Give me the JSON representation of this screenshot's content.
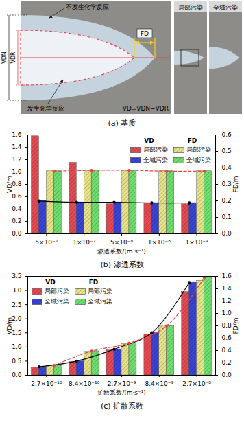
{
  "diagram": {
    "caption": "(a) 基质",
    "outer_label": "不发生化学反应",
    "inner_label": "发生化学反应",
    "fd_label": "FD",
    "vdn_label": "VDN",
    "vdr_label": "VDR",
    "equation": "VD=VDN−VDR",
    "panels": [
      "局部污染",
      "全域污染"
    ]
  },
  "chart_data": [
    {
      "type": "bar",
      "caption": "(b) 渗透系数",
      "xlabel": "渗透系数/(m·s⁻¹)",
      "ylabel": "VD/m",
      "y2label": "FD/m",
      "categories": [
        "5×10⁻⁷",
        "1×10⁻⁷",
        "5×10⁻⁸",
        "1×10⁻⁸",
        "1×10⁻⁹"
      ],
      "ylim": [
        0,
        1.6
      ],
      "yticks": [
        {
          "value": 0,
          "label": "0.0"
        },
        0.2,
        0.4,
        0.6,
        0.8,
        {
          "value": 1,
          "label": "1.0"
        },
        1.2,
        1.4,
        1.6
      ],
      "y2lim": [
        0,
        0.6
      ],
      "y2ticks": [
        {
          "value": 0,
          "label": "0.0"
        },
        0.1,
        0.2,
        0.3,
        0.4,
        0.5,
        0.6
      ],
      "legend": "upper right",
      "series": [
        {
          "name": "局部污染",
          "group": "VD",
          "type": "bar",
          "axis": "y",
          "color": "#e64a52",
          "values": [
            1.58,
            1.15,
            0.48,
            0.49,
            0.48
          ]
        },
        {
          "name": "全域污染",
          "group": "VD",
          "type": "bar",
          "axis": "y",
          "color": "#3a44d6",
          "values": [
            0.53,
            0.51,
            0.51,
            0.5,
            0.5
          ]
        },
        {
          "name": "局部污染",
          "group": "FD",
          "type": "bar",
          "axis": "y2",
          "color": "#e8e48c",
          "values": [
            0.38,
            0.385,
            0.385,
            0.38,
            0.38
          ]
        },
        {
          "name": "全域污染",
          "group": "FD",
          "type": "bar",
          "axis": "y2",
          "color": "#6fe06f",
          "values": [
            0.38,
            0.385,
            0.385,
            0.38,
            0.38
          ]
        },
        {
          "type": "line",
          "axis": "y",
          "color": "#000000",
          "line_style": "solid",
          "marker": "circle",
          "values": [
            0.53,
            0.51,
            0.51,
            0.5,
            0.5
          ]
        },
        {
          "type": "line",
          "axis": "y2",
          "color": "#e8434a",
          "line_style": "dashed",
          "marker": "circle",
          "values": [
            0.38,
            0.385,
            0.385,
            0.38,
            0.38
          ]
        }
      ]
    },
    {
      "type": "bar",
      "caption": "(c) 扩散系数",
      "xlabel": "扩散系数/(m·s⁻¹)",
      "ylabel": "VD/m",
      "y2label": "FD/m",
      "categories": [
        "2.7×10⁻¹⁰",
        "8.4×10⁻¹⁰",
        "2.7×10⁻⁹",
        "8.4×10⁻⁹",
        "2.7×10⁻⁸"
      ],
      "ylim": [
        0,
        3.5
      ],
      "yticks": [
        {
          "value": 0,
          "label": "0.0"
        },
        0.5,
        {
          "value": 1,
          "label": "1.0"
        },
        1.5,
        {
          "value": 2,
          "label": "2.0"
        },
        2.5,
        {
          "value": 3,
          "label": "3.0"
        },
        3.5
      ],
      "y2lim": [
        0,
        1.6
      ],
      "y2ticks": [
        {
          "value": 0,
          "label": "0.0"
        },
        0.2,
        0.4,
        0.6,
        0.8,
        {
          "value": 1,
          "label": "1.0"
        },
        1.2,
        1.4,
        1.6
      ],
      "legend": "upper left",
      "series": [
        {
          "name": "局部污染",
          "group": "VD",
          "type": "bar",
          "axis": "y",
          "color": "#e64a52",
          "values": [
            0.28,
            0.47,
            0.88,
            1.44,
            2.95
          ]
        },
        {
          "name": "全域污染",
          "group": "VD",
          "type": "bar",
          "axis": "y",
          "color": "#3a44d6",
          "values": [
            0.3,
            0.5,
            0.92,
            1.5,
            3.28
          ]
        },
        {
          "name": "局部污染",
          "group": "FD",
          "type": "bar",
          "axis": "y2",
          "color": "#e8e48c",
          "values": [
            0.16,
            0.38,
            0.51,
            0.79,
            1.53
          ]
        },
        {
          "name": "全域污染",
          "group": "FD",
          "type": "bar",
          "axis": "y2",
          "color": "#6fe06f",
          "values": [
            0.16,
            0.39,
            0.52,
            0.8,
            1.58
          ]
        },
        {
          "type": "line",
          "axis": "y",
          "color": "#000000",
          "line_style": "solid",
          "marker": "circle",
          "values": [
            0.3,
            0.5,
            0.92,
            1.5,
            3.28
          ]
        },
        {
          "type": "line",
          "axis": "y2",
          "color": "#e8434a",
          "line_style": "dashed",
          "marker": "circle",
          "values": [
            0.16,
            0.39,
            0.52,
            0.8,
            1.58
          ]
        }
      ]
    }
  ]
}
